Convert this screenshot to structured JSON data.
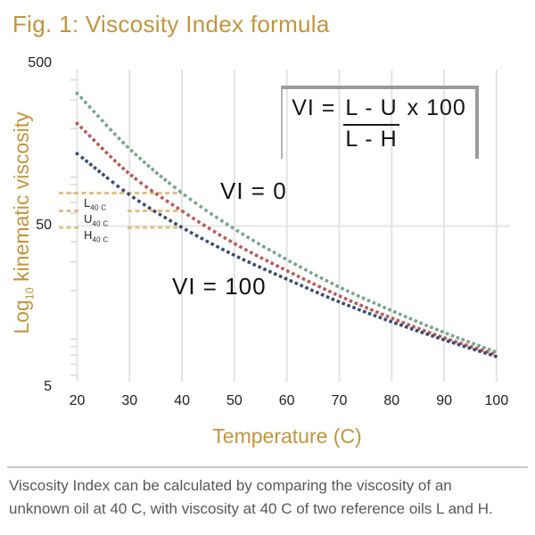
{
  "title": "Fig. 1: Viscosity Index formula",
  "colors": {
    "gold_text": "#C0953F",
    "tan_dash": "#DEBB7D",
    "grid": "#E4E4E4",
    "minor_tick": "#D8D8D8",
    "series_L_green": "#6F9E85",
    "series_U_red": "#AE514E",
    "series_H_navy": "#2F3F63",
    "box_border": "#9A9A9A",
    "caption_gray": "#57585A"
  },
  "formula": {
    "lhs": "VI =",
    "numerator": "L - U",
    "multiplier": "x 100",
    "denominator": "L - H"
  },
  "annotations": {
    "vi0": "VI = 0",
    "vi100": "VI = 100"
  },
  "refs": [
    {
      "letter": "L",
      "sub": "40 C"
    },
    {
      "letter": "U",
      "sub": "40 C"
    },
    {
      "letter": "H",
      "sub": "40 C"
    }
  ],
  "axes": {
    "y_title_log": "Log",
    "y_title_sub": "10",
    "y_title_rest": " kinematic viscosity",
    "y_ticks": [
      "500",
      "50",
      "5"
    ],
    "x_ticks": [
      "20",
      "30",
      "40",
      "50",
      "60",
      "70",
      "80",
      "90",
      "100"
    ],
    "x_title": "Temperature (C)"
  },
  "caption": {
    "lines": [
      "Viscosity Index can be calculated by comparing the viscosity of an",
      "unknown oil at 40 C, with viscosity at 40 C of two reference oils L and H."
    ]
  },
  "chart_data": {
    "type": "scatter",
    "title": "Fig. 1: Viscosity Index formula",
    "xlabel": "Temperature (C)",
    "ylabel": "Log10 kinematic viscosity",
    "y_scale": "log10",
    "x_range": [
      20,
      100
    ],
    "y_tick_values": [
      500,
      50,
      5
    ],
    "minor_y_ticks": [
      400,
      300,
      200,
      100,
      90,
      80,
      70,
      60,
      40,
      30,
      20,
      10,
      9,
      8,
      7,
      6
    ],
    "x": [
      20,
      30,
      40,
      50,
      60,
      70,
      80,
      90,
      100
    ],
    "series": [
      {
        "name": "L (VI = 0 reference oil)",
        "color": "#6F9E85",
        "values": [
          330,
          150,
          80,
          48,
          31,
          21,
          15,
          11,
          8.3
        ]
      },
      {
        "name": "U (unknown oil)",
        "color": "#AE514E",
        "values": [
          215,
          105,
          62,
          39,
          26.5,
          18.5,
          13.5,
          10.2,
          8.0
        ]
      },
      {
        "name": "H (VI = 100 reference oil)",
        "color": "#2F3F63",
        "values": [
          140,
          78,
          49,
          33,
          23.5,
          17,
          12.8,
          9.9,
          7.8
        ]
      }
    ],
    "reference_lines_40C": [
      {
        "label": "L",
        "value": 80,
        "split": false
      },
      {
        "label": "U",
        "value": 62,
        "split": true
      },
      {
        "label": "H",
        "value": 49,
        "split": true
      }
    ],
    "grid": "vertical gridline at each x tick; horizontal gridline at y=50",
    "legend_position": "none"
  }
}
